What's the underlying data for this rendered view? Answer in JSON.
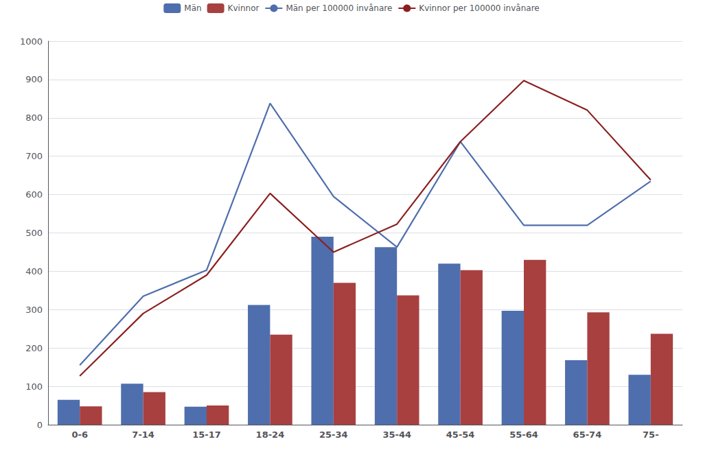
{
  "chart_data": {
    "type": "bar",
    "categories": [
      "0-6",
      "7-14",
      "15-17",
      "18-24",
      "25-34",
      "35-44",
      "45-54",
      "55-64",
      "65-74",
      "75-"
    ],
    "series": [
      {
        "name": "Män",
        "type": "bar",
        "color": "#4F6EAD",
        "values": [
          65,
          107,
          47,
          312,
          490,
          463,
          420,
          297,
          168,
          130
        ]
      },
      {
        "name": "Kvinnor",
        "type": "bar",
        "color": "#A84040",
        "values": [
          48,
          85,
          50,
          235,
          370,
          337,
          403,
          430,
          293,
          237
        ]
      },
      {
        "name": "Män per 100000 invånare",
        "type": "line",
        "color": "#4F6EAD",
        "values": [
          155,
          335,
          403,
          838,
          595,
          463,
          738,
          520,
          520,
          635
        ]
      },
      {
        "name": "Kvinnor per 100000 invånare",
        "type": "line",
        "color": "#8B2020",
        "values": [
          127,
          290,
          390,
          603,
          450,
          523,
          738,
          897,
          820,
          638
        ]
      }
    ],
    "ylim": [
      0,
      1000
    ],
    "yticks": [
      0,
      100,
      200,
      300,
      400,
      500,
      600,
      700,
      800,
      900,
      1000
    ],
    "grid": true,
    "legend": "top"
  }
}
